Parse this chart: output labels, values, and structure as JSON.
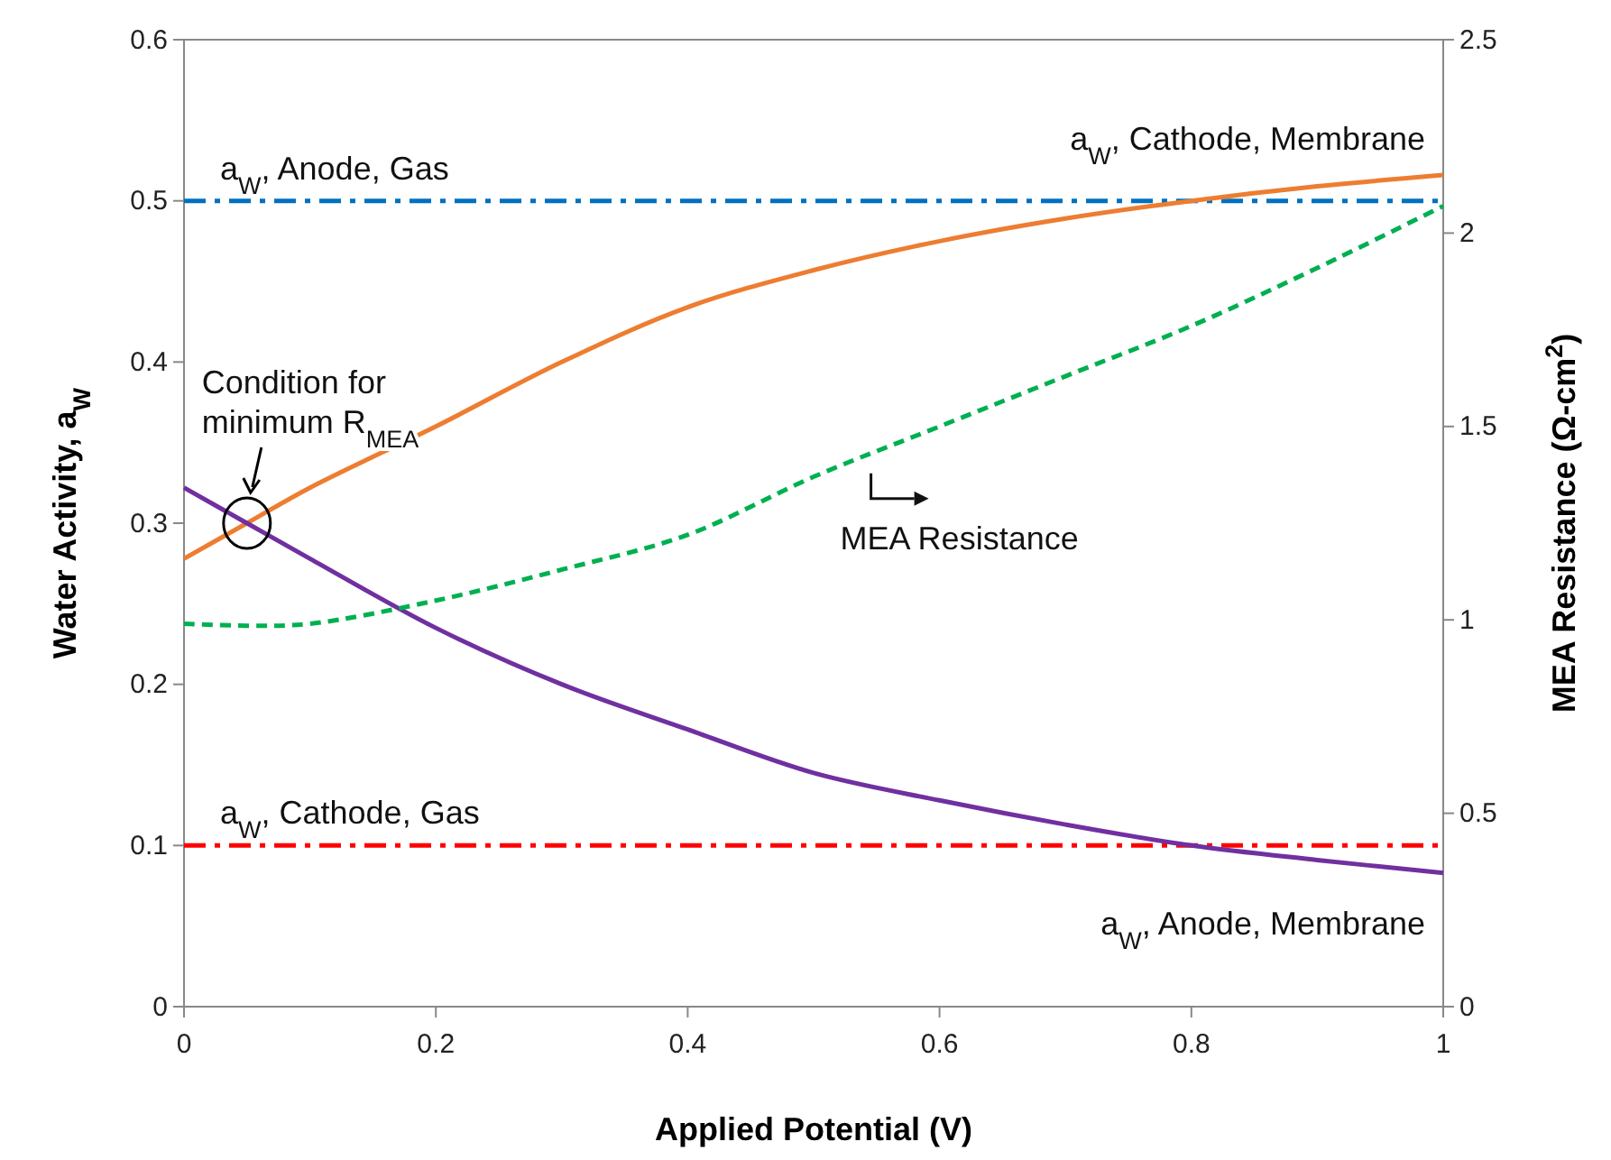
{
  "chart_data": {
    "type": "line",
    "xlabel": "Applied Potential (V)",
    "ylabel": "Water Activity, a$_{W}$",
    "y2label": "MEA Resistance (Ω-cm$^{2}$)",
    "xlim": [
      0,
      1
    ],
    "xticks": [
      0,
      0.2,
      0.4,
      0.6,
      0.8,
      1
    ],
    "ylim": [
      0,
      0.6
    ],
    "yticks": [
      0,
      0.1,
      0.2,
      0.3,
      0.4,
      0.5,
      0.6
    ],
    "y2lim": [
      0,
      2.5
    ],
    "y2ticks": [
      0,
      0.5,
      1,
      1.5,
      2,
      2.5
    ],
    "x": [
      0,
      0.05,
      0.1,
      0.2,
      0.3,
      0.4,
      0.5,
      0.6,
      0.7,
      0.8,
      0.9,
      1
    ],
    "grid": false,
    "marker": "none",
    "series": [
      {
        "name": "a$_{W}$, Cathode, Membrane",
        "color": "#ed7d31",
        "line_style": "solid",
        "values": [
          0.278,
          0.3,
          0.322,
          0.36,
          0.4,
          0.434,
          0.457,
          0.475,
          0.489,
          0.5,
          0.509,
          0.516
        ]
      },
      {
        "name": "a$_{W}$, Anode, Membrane",
        "color": "#7030a0",
        "line_style": "solid",
        "values": [
          0.322,
          0.3,
          0.278,
          0.235,
          0.2,
          0.172,
          0.145,
          0.128,
          0.113,
          0.1,
          0.091,
          0.083
        ]
      },
      {
        "name": "MEA Resistance",
        "color": "#00b050",
        "line_style": "dashed",
        "axis": "y2",
        "values": [
          0.99,
          0.985,
          0.99,
          1.05,
          1.13,
          1.22,
          1.37,
          1.5,
          1.63,
          1.76,
          1.91,
          2.07
        ]
      }
    ],
    "ref_lines": [
      {
        "axis": "y",
        "value": 0.5,
        "label": "a$_{W}$, Anode, Gas",
        "color": "#0070c0",
        "line_style": "dashdot"
      },
      {
        "axis": "y",
        "value": 0.1,
        "label": "a$_{W}$, Cathode, Gas",
        "color": "#ff0000",
        "line_style": "dashdot"
      }
    ],
    "annotations": [
      {
        "text": "Condition for minimum R$_{MEA}$",
        "x": 0.05,
        "y": 0.3
      }
    ]
  }
}
